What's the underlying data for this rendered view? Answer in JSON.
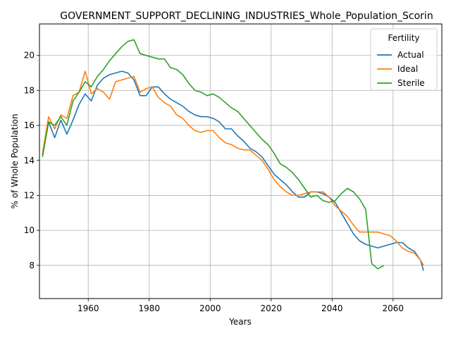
{
  "chart_data": {
    "type": "line",
    "title": "GOVERNMENT_SUPPORT_DECLINING_INDUSTRIES_Whole_Population_Scorin",
    "xlabel": "Years",
    "ylabel": "% of Whole Population",
    "xlim": [
      1944,
      2076
    ],
    "ylim": [
      6.1,
      21.8
    ],
    "xticks": [
      1940,
      1960,
      1980,
      2000,
      2020,
      2040,
      2060
    ],
    "yticks": [
      8,
      10,
      12,
      14,
      16,
      18,
      20
    ],
    "grid": true,
    "legend": {
      "title": "Fertility",
      "placement": "top-right"
    },
    "x": [
      1945,
      1947,
      1949,
      1951,
      1953,
      1955,
      1957,
      1959,
      1961,
      1963,
      1965,
      1967,
      1969,
      1971,
      1973,
      1975,
      1977,
      1979,
      1981,
      1983,
      1985,
      1987,
      1989,
      1991,
      1993,
      1995,
      1997,
      1999,
      2001,
      2003,
      2005,
      2007,
      2009,
      2011,
      2013,
      2015,
      2017,
      2019,
      2021,
      2023,
      2025,
      2027,
      2029,
      2031,
      2033,
      2035,
      2037,
      2039,
      2041,
      2043,
      2045,
      2047,
      2049,
      2051,
      2053,
      2055,
      2057,
      2059,
      2061,
      2063,
      2065,
      2067,
      2069,
      2070
    ],
    "series": [
      {
        "name": "Actual",
        "color": "#1f77b4",
        "values": [
          14.3,
          16.2,
          15.3,
          16.3,
          15.5,
          16.3,
          17.2,
          17.8,
          17.4,
          18.3,
          18.7,
          18.9,
          19.0,
          19.1,
          19.0,
          18.6,
          17.7,
          17.7,
          18.2,
          18.2,
          17.8,
          17.5,
          17.3,
          17.1,
          16.8,
          16.6,
          16.5,
          16.5,
          16.4,
          16.2,
          15.8,
          15.8,
          15.4,
          15.1,
          14.7,
          14.5,
          14.2,
          13.7,
          13.2,
          12.9,
          12.6,
          12.2,
          11.9,
          11.9,
          12.2,
          12.2,
          12.1,
          11.9,
          11.6,
          11.0,
          10.4,
          9.8,
          9.4,
          9.2,
          9.1,
          9.0,
          9.1,
          9.2,
          9.3,
          9.3,
          9.0,
          8.8,
          8.3,
          7.7
        ]
      },
      {
        "name": "Ideal",
        "color": "#ff7f0e",
        "values": [
          14.4,
          16.5,
          15.8,
          16.6,
          16.4,
          17.7,
          17.9,
          19.1,
          17.8,
          18.1,
          17.9,
          17.5,
          18.5,
          18.6,
          18.7,
          18.8,
          17.9,
          18.1,
          18.2,
          17.6,
          17.3,
          17.1,
          16.6,
          16.4,
          16.0,
          15.7,
          15.6,
          15.7,
          15.7,
          15.3,
          15.0,
          14.9,
          14.7,
          14.6,
          14.6,
          14.3,
          14.0,
          13.5,
          12.9,
          12.5,
          12.2,
          12.0,
          12.0,
          12.1,
          12.2,
          12.2,
          12.2,
          11.9,
          11.4,
          11.1,
          10.8,
          10.3,
          9.9,
          9.9,
          9.9,
          9.9,
          9.8,
          9.7,
          9.4,
          9.0,
          8.8,
          8.7,
          8.3,
          8.0
        ]
      },
      {
        "name": "Sterile",
        "color": "#2ca02c",
        "values": [
          14.2,
          16.2,
          16.0,
          16.5,
          16.0,
          17.4,
          17.9,
          18.5,
          18.2,
          18.8,
          19.2,
          19.7,
          20.1,
          20.5,
          20.8,
          20.9,
          20.1,
          20.0,
          19.9,
          19.8,
          19.8,
          19.3,
          19.2,
          18.9,
          18.4,
          18.0,
          17.9,
          17.7,
          17.8,
          17.6,
          17.3,
          17.0,
          16.8,
          16.4,
          16.0,
          15.6,
          15.2,
          14.9,
          14.4,
          13.8,
          13.6,
          13.3,
          12.9,
          12.4,
          11.9,
          12.0,
          11.7,
          11.6,
          11.7,
          12.1,
          12.4,
          12.2,
          11.8,
          11.2,
          8.1,
          7.8,
          8.0,
          null,
          null,
          null,
          null,
          null,
          null,
          null
        ]
      }
    ]
  }
}
